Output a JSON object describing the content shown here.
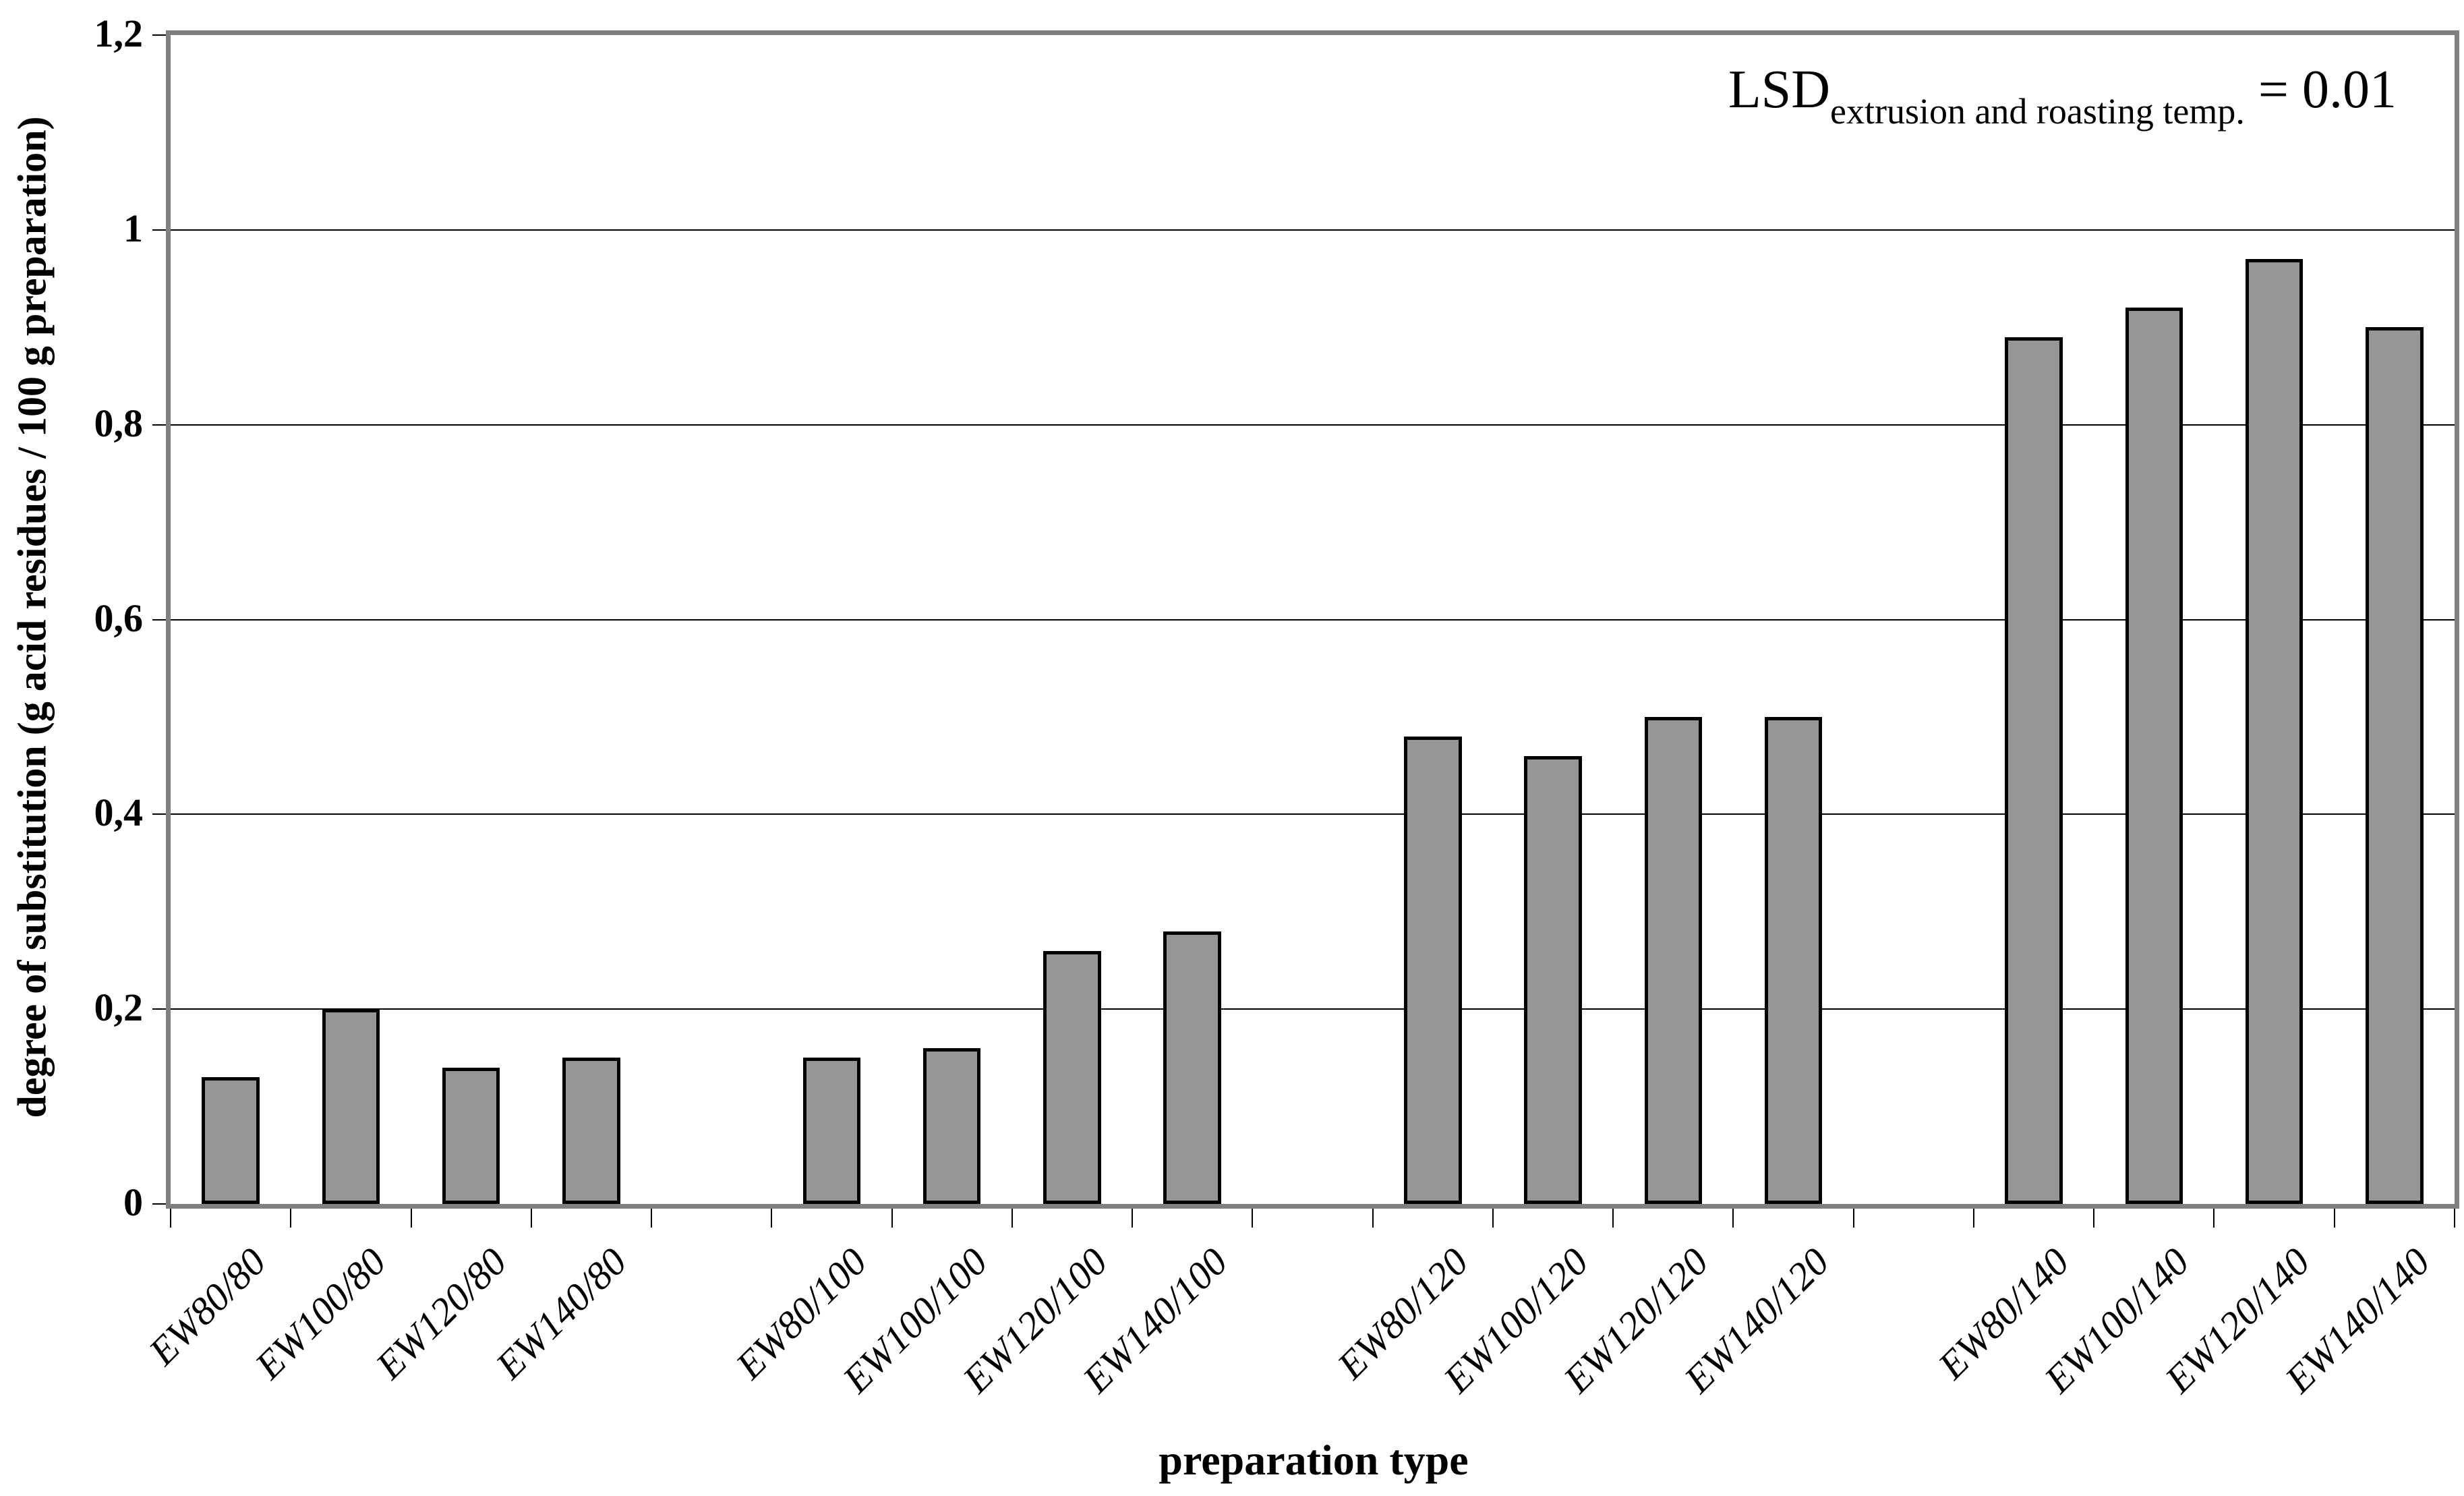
{
  "figure": {
    "y_axis_title": "degree of substitution (g acid residues / 100 g preparation)",
    "x_axis_title": "preparation type",
    "annotation": {
      "prefix": "LSD",
      "subscript": "extrusion and roasting temp.",
      "suffix": " = 0.01"
    }
  },
  "chart_data": {
    "type": "bar",
    "title": "",
    "xlabel": "preparation type",
    "ylabel": "degree of substitution (g acid residues / 100 g preparation)",
    "ylim": [
      0,
      1.2
    ],
    "grid": true,
    "legend_position": "none",
    "categories": [
      "EW80/80",
      "EW100/80",
      "EW120/80",
      "EW140/80",
      "EW80/100",
      "EW100/100",
      "EW120/100",
      "EW140/100",
      "EW80/120",
      "EW100/120",
      "EW120/120",
      "EW140/120",
      "EW80/140",
      "EW100/140",
      "EW120/140",
      "EW140/140"
    ],
    "values": [
      0.13,
      0.2,
      0.14,
      0.15,
      0.15,
      0.16,
      0.26,
      0.28,
      0.48,
      0.46,
      0.5,
      0.5,
      0.89,
      0.92,
      0.97,
      0.9
    ],
    "group_size": 4,
    "yticks": [
      {
        "label": "0",
        "value": 0
      },
      {
        "label": "0,2",
        "value": 0.2
      },
      {
        "label": "0,4",
        "value": 0.4
      },
      {
        "label": "0,6",
        "value": 0.6
      },
      {
        "label": "0,8",
        "value": 0.8
      },
      {
        "label": "1",
        "value": 1.0
      },
      {
        "label": "1,2",
        "value": 1.2
      }
    ],
    "annotation_text": "LSD extrusion and roasting temp. = 0.01",
    "bar_fill_color": "#969696",
    "bar_border_color": "#000000",
    "frame_color": "#808080",
    "gridline_color": "#000000"
  }
}
